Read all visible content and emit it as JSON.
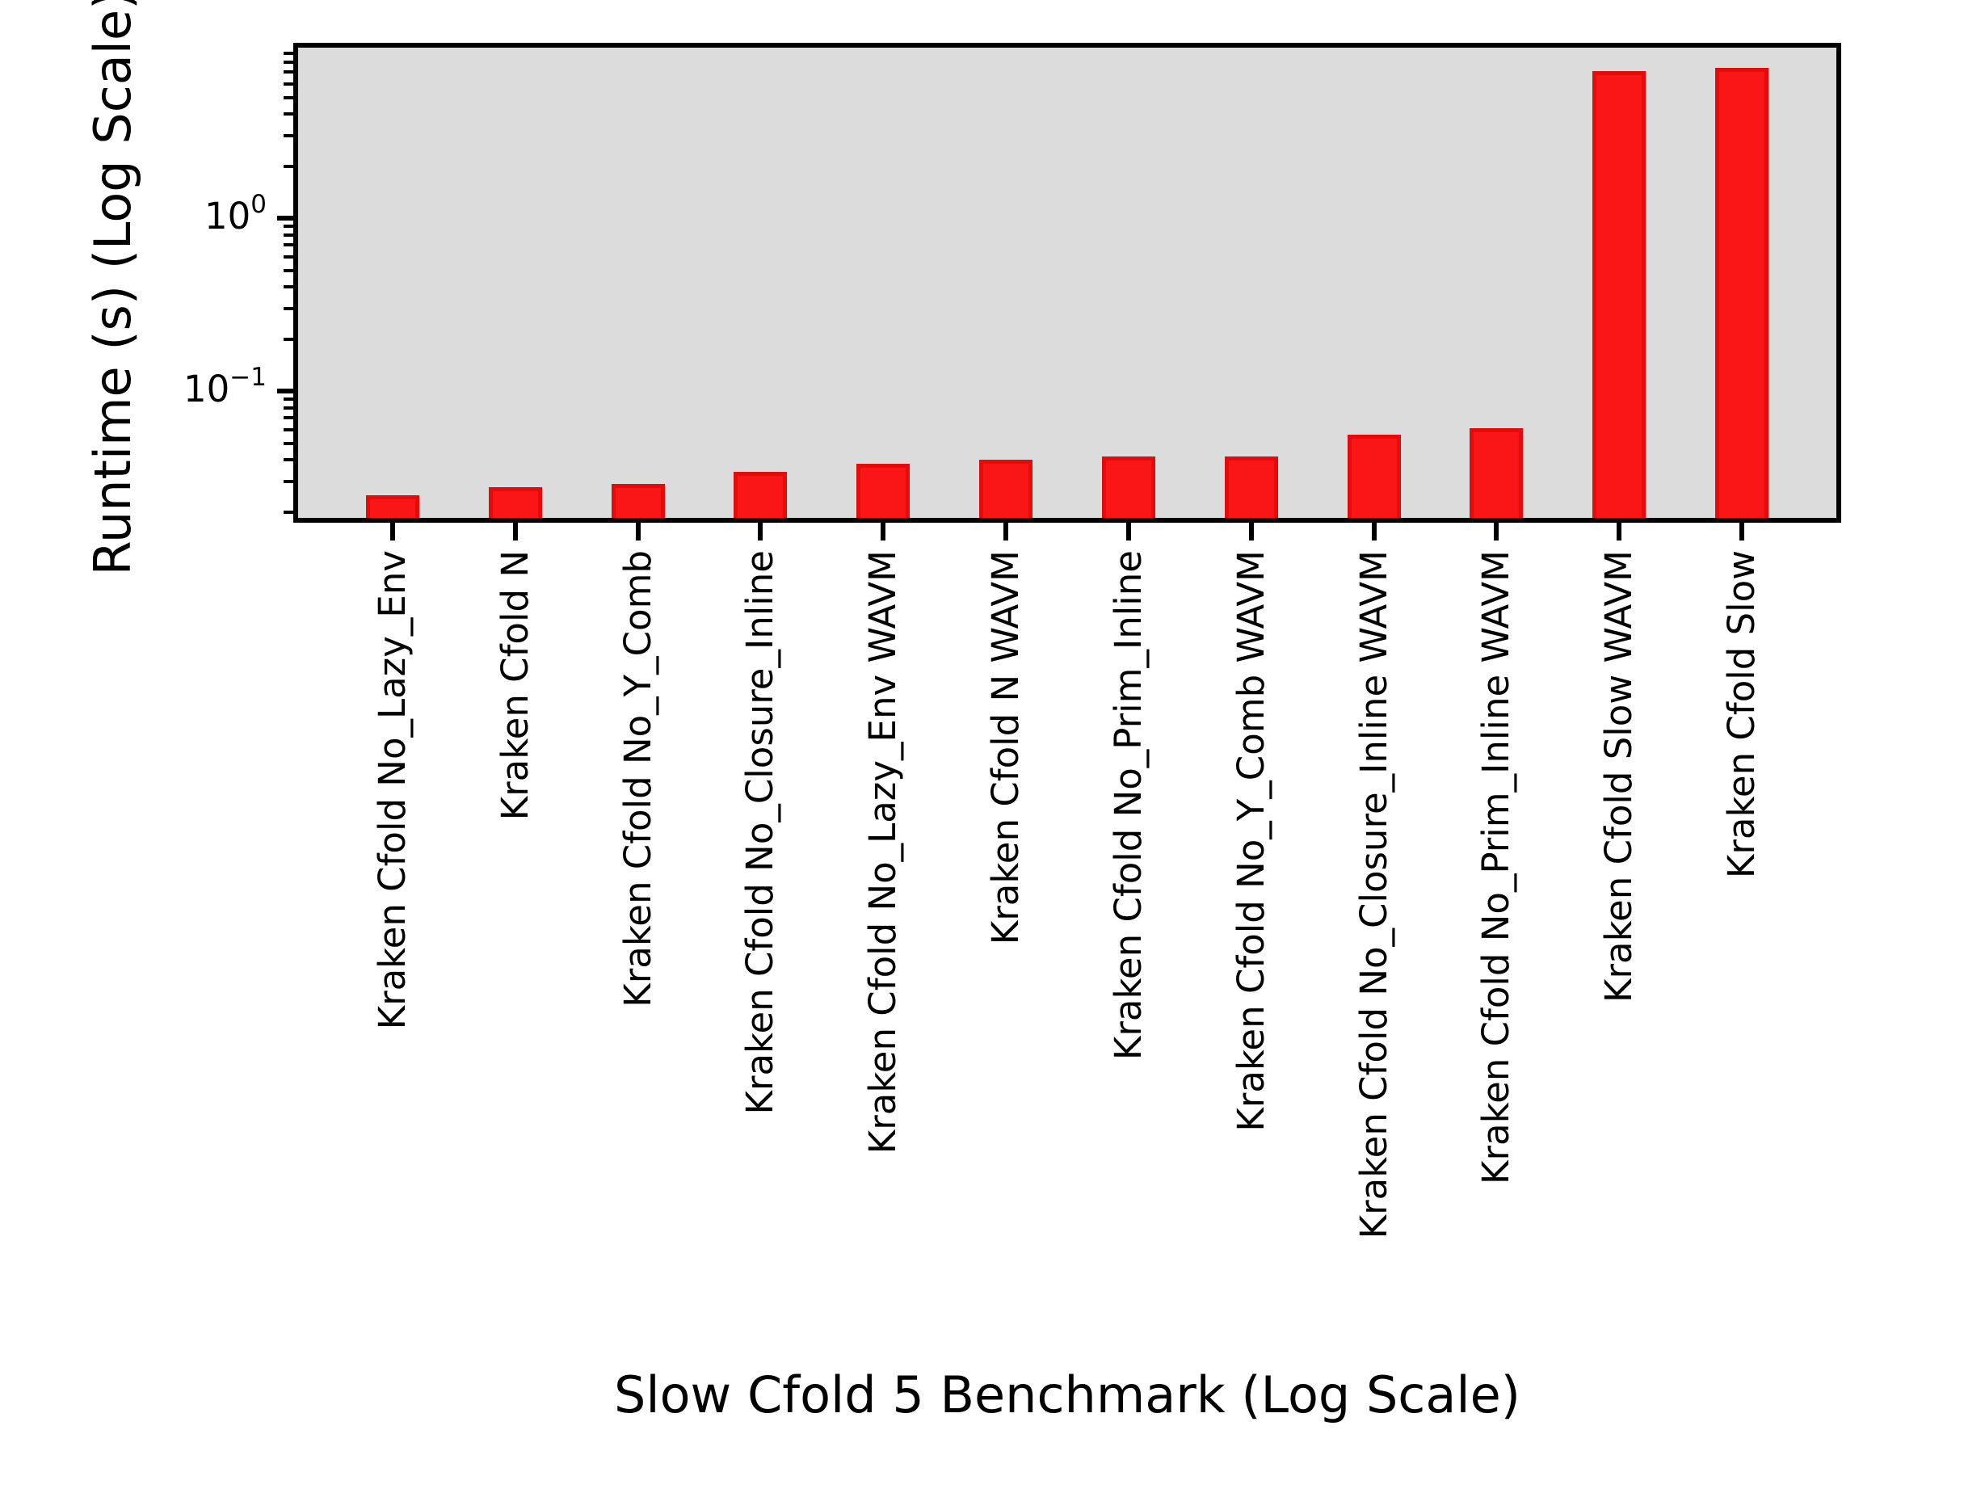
{
  "chart_data": {
    "type": "bar",
    "title": "",
    "xlabel": "Slow Cfold 5 Benchmark (Log Scale)",
    "ylabel": "Runtime (s) (Log Scale)",
    "yscale": "log",
    "ylim": [
      0.0185,
      9.7
    ],
    "grid": false,
    "legend": {
      "visible": true,
      "position": "upper right",
      "entries": []
    },
    "categories": [
      "Kraken Cfold No_Lazy_Env",
      "Kraken Cfold N",
      "Kraken Cfold No_Y_Comb",
      "Kraken Cfold No_Closure_Inline",
      "Kraken Cfold No_Lazy_Env WAVM",
      "Kraken Cfold N WAVM",
      "Kraken Cfold No_Prim_Inline",
      "Kraken Cfold No_Y_Comb WAVM",
      "Kraken Cfold No_Closure_Inline WAVM",
      "Kraken Cfold No_Prim_Inline WAVM",
      "Kraken Cfold Slow WAVM",
      "Kraken Cfold Slow"
    ],
    "values": [
      0.025,
      0.028,
      0.029,
      0.034,
      0.038,
      0.04,
      0.042,
      0.042,
      0.056,
      0.061,
      7.1,
      7.4
    ],
    "values_unit": "s",
    "yticks": [
      {
        "value": 1,
        "base": "10",
        "exp": "0"
      },
      {
        "value": 0.1,
        "base": "10",
        "exp": "−1"
      }
    ],
    "colors": {
      "bar_fill": "#fa1616",
      "bar_edge": "#e60b0b",
      "plot_bg": "#dcdcdc",
      "spine": "#000000",
      "figure_bg": "#ffffff",
      "legend_bg": "#fcfcfc",
      "legend_border": "#d4d4d4"
    }
  }
}
